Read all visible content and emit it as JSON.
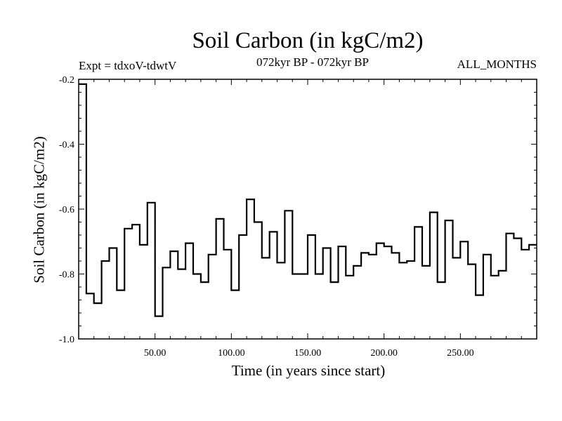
{
  "chart_data": {
    "type": "line",
    "title": "Soil Carbon (in kgC/m2)",
    "subtitle_left": "Expt = tdxoV-tdwtV",
    "subtitle_center": "072kyr BP - 072kyr BP",
    "subtitle_right": "ALL_MONTHS",
    "xlabel": "Time (in years since start)",
    "ylabel": "Soil Carbon (in kgC/m2)",
    "xlim": [
      0,
      300
    ],
    "ylim": [
      -1.0,
      -0.2
    ],
    "x_ticks": [
      50,
      100,
      150,
      200,
      250
    ],
    "x_tick_labels": [
      "50.00",
      "100.00",
      "150.00",
      "200.00",
      "250.00"
    ],
    "y_ticks": [
      -1.0,
      -0.8,
      -0.6,
      -0.4,
      -0.2
    ],
    "y_tick_labels": [
      "-1.0",
      "-0.8",
      "-0.6",
      "-0.4",
      "-0.2"
    ],
    "step": 5,
    "series": [
      {
        "values": [
          -0.215,
          -0.86,
          -0.89,
          -0.76,
          -0.72,
          -0.85,
          -0.66,
          -0.648,
          -0.71,
          -0.58,
          -0.93,
          -0.78,
          -0.73,
          -0.785,
          -0.705,
          -0.8,
          -0.825,
          -0.74,
          -0.63,
          -0.725,
          -0.85,
          -0.68,
          -0.57,
          -0.64,
          -0.75,
          -0.67,
          -0.765,
          -0.605,
          -0.8,
          -0.8,
          -0.68,
          -0.8,
          -0.72,
          -0.825,
          -0.715,
          -0.805,
          -0.775,
          -0.735,
          -0.74,
          -0.705,
          -0.715,
          -0.735,
          -0.765,
          -0.76,
          -0.655,
          -0.775,
          -0.61,
          -0.825,
          -0.635,
          -0.75,
          -0.7,
          -0.77,
          -0.865,
          -0.74,
          -0.805,
          -0.79,
          -0.675,
          -0.69,
          -0.725,
          -0.71
        ]
      }
    ]
  }
}
